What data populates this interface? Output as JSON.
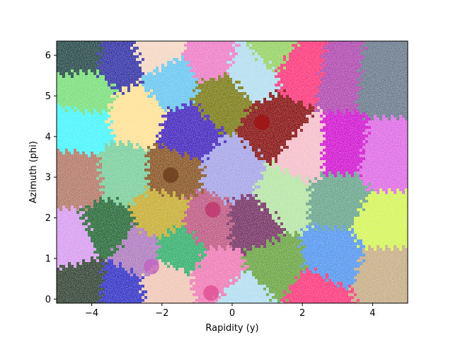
{
  "chart_data": {
    "type": "scatter",
    "title": "",
    "xlabel": "Rapidity (y)",
    "ylabel": "Azimuth (phi)",
    "xlim": [
      -5.0,
      5.0
    ],
    "ylim": [
      -0.1,
      6.35
    ],
    "xticks": [
      -4,
      -2,
      0,
      2,
      4
    ],
    "yticks": [
      0,
      1,
      2,
      3,
      4,
      5,
      6
    ],
    "grid": false,
    "legend": "none",
    "clusters": [
      {
        "x": -4.3,
        "y": 6.05,
        "color": "#2f4f4f"
      },
      {
        "x": -3.2,
        "y": 5.9,
        "color": "#3a3aa8"
      },
      {
        "x": -2.2,
        "y": 6.15,
        "color": "#f4d9c6"
      },
      {
        "x": -1.7,
        "y": 5.35,
        "color": "#6fc8f0"
      },
      {
        "x": -0.6,
        "y": 5.9,
        "color": "#ee82c8"
      },
      {
        "x": 0.5,
        "y": 5.6,
        "color": "#b5dff0"
      },
      {
        "x": 1.2,
        "y": 6.2,
        "color": "#9ad36a"
      },
      {
        "x": 2.0,
        "y": 5.75,
        "color": "#ff3f7f"
      },
      {
        "x": 3.1,
        "y": 5.6,
        "color": "#b24fb2"
      },
      {
        "x": 4.2,
        "y": 5.5,
        "color": "#6f7f8f"
      },
      {
        "x": -4.2,
        "y": 5.1,
        "color": "#7fe07f"
      },
      {
        "x": -2.7,
        "y": 4.5,
        "color": "#ffe29a"
      },
      {
        "x": -0.3,
        "y": 5.0,
        "color": "#808020"
      },
      {
        "x": -1.3,
        "y": 4.1,
        "color": "#4a2fc0"
      },
      {
        "x": -4.3,
        "y": 4.2,
        "color": "#4ff5ff"
      },
      {
        "x": 1.2,
        "y": 4.2,
        "color": "#8b1a1a"
      },
      {
        "x": 2.1,
        "y": 3.6,
        "color": "#f5c0cc"
      },
      {
        "x": 3.1,
        "y": 3.6,
        "color": "#d21fd2"
      },
      {
        "x": 4.3,
        "y": 3.4,
        "color": "#e070e6"
      },
      {
        "x": -4.4,
        "y": 3.0,
        "color": "#b67d6c"
      },
      {
        "x": -3.1,
        "y": 3.1,
        "color": "#7fd0a0"
      },
      {
        "x": -1.7,
        "y": 3.1,
        "color": "#8b5a2b"
      },
      {
        "x": 0.0,
        "y": 3.1,
        "color": "#a8a8e8"
      },
      {
        "x": 1.4,
        "y": 2.5,
        "color": "#b8e6a8"
      },
      {
        "x": 3.0,
        "y": 2.5,
        "color": "#6fa890"
      },
      {
        "x": 4.3,
        "y": 1.9,
        "color": "#d6f55f"
      },
      {
        "x": -3.6,
        "y": 1.7,
        "color": "#2f6f3f"
      },
      {
        "x": -2.0,
        "y": 2.1,
        "color": "#c8b03a"
      },
      {
        "x": -0.7,
        "y": 1.9,
        "color": "#c05f86"
      },
      {
        "x": 0.6,
        "y": 1.9,
        "color": "#7a3a6a"
      },
      {
        "x": -4.5,
        "y": 1.4,
        "color": "#d8a0f0"
      },
      {
        "x": -2.7,
        "y": 1.1,
        "color": "#b080c0"
      },
      {
        "x": -1.5,
        "y": 1.2,
        "color": "#3cb371"
      },
      {
        "x": 1.2,
        "y": 0.8,
        "color": "#70a84a"
      },
      {
        "x": 2.9,
        "y": 1.0,
        "color": "#5a9af0"
      },
      {
        "x": 4.3,
        "y": 0.6,
        "color": "#c8b08a"
      },
      {
        "x": -4.2,
        "y": 0.4,
        "color": "#3a4a3a"
      },
      {
        "x": -3.2,
        "y": 0.3,
        "color": "#3a3ac8"
      },
      {
        "x": -1.9,
        "y": 0.4,
        "color": "#f0c8b8"
      },
      {
        "x": -0.4,
        "y": 0.6,
        "color": "#f080b8"
      },
      {
        "x": 2.4,
        "y": 0.05,
        "color": "#ff3f7f"
      },
      {
        "x": 0.3,
        "y": 0.05,
        "color": "#b5dff0"
      }
    ],
    "highlights": [
      {
        "x": 0.85,
        "y": 4.35,
        "color": "#a01010"
      },
      {
        "x": -0.55,
        "y": 2.2,
        "color": "#c0306a"
      },
      {
        "x": -0.6,
        "y": 0.15,
        "color": "#e04a90"
      },
      {
        "x": -1.75,
        "y": 3.05,
        "color": "#6a3a1a"
      },
      {
        "x": -2.3,
        "y": 0.8,
        "color": "#c060c0"
      }
    ]
  }
}
